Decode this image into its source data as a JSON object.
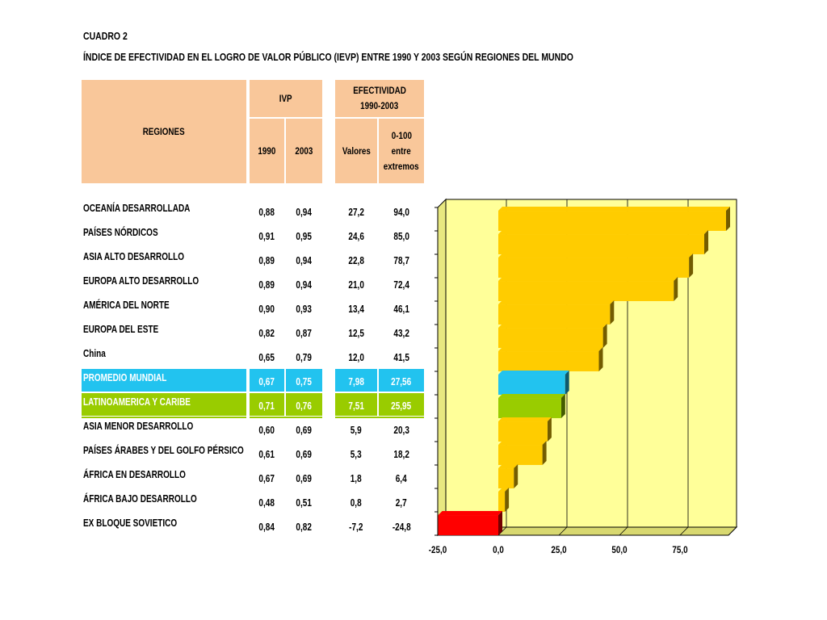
{
  "cuadro": "CUADRO 2",
  "subtitle": "ÍNDICE DE EFECTIVIDAD EN EL LOGRO DE VALOR PÚBLICO (IEVP) ENTRE 1990 Y 2003 SEGÚN REGIONES DEL MUNDO",
  "table": {
    "headers": {
      "regiones": "REGIONES",
      "ivp": "IVP",
      "y1990": "1990",
      "y2003": "2003",
      "efectividad_l1": "EFECTIVIDAD",
      "efectividad_l2": "1990-2003",
      "valores": "Valores",
      "scale_l1": "0-100",
      "scale_l2": "entre",
      "scale_l3": "extremos"
    },
    "rows": [
      {
        "name": "OCEANÍA DESARROLLADA",
        "v1990": "0,88",
        "v2003": "0,94",
        "valor": "27,2",
        "scale": "94,0"
      },
      {
        "name": "PAÍSES NÓRDICOS",
        "v1990": "0,91",
        "v2003": "0,95",
        "valor": "24,6",
        "scale": "85,0"
      },
      {
        "name": "ASIA ALTO DESARROLLO",
        "v1990": "0,89",
        "v2003": "0,94",
        "valor": "22,8",
        "scale": "78,7"
      },
      {
        "name": "EUROPA ALTO DESARROLLO",
        "v1990": "0,89",
        "v2003": "0,94",
        "valor": "21,0",
        "scale": "72,4"
      },
      {
        "name": "AMÉRICA DEL NORTE",
        "v1990": "0,90",
        "v2003": "0,93",
        "valor": "13,4",
        "scale": "46,1"
      },
      {
        "name": "EUROPA DEL ESTE",
        "v1990": "0,82",
        "v2003": "0,87",
        "valor": "12,5",
        "scale": "43,2"
      },
      {
        "name": "China",
        "v1990": "0,65",
        "v2003": "0,79",
        "valor": "12,0",
        "scale": "41,5"
      },
      {
        "name": "PROMEDIO MUNDIAL",
        "v1990": "0,67",
        "v2003": "0,75",
        "valor": "7,98",
        "scale": "27,56",
        "highlight": "#22c3ef"
      },
      {
        "name": "LATINOAMERICA Y CARIBE",
        "v1990": "0,71",
        "v2003": "0,76",
        "valor": "7,51",
        "scale": "25,95",
        "highlight": "#99cc00"
      },
      {
        "name": "ASIA MENOR DESARROLLO",
        "v1990": "0,60",
        "v2003": "0,69",
        "valor": "5,9",
        "scale": "20,3"
      },
      {
        "name": "PAÍSES ÁRABES Y DEL GOLFO PÉRSICO",
        "v1990": "0,61",
        "v2003": "0,69",
        "valor": "5,3",
        "scale": "18,2"
      },
      {
        "name": "ÁFRICA EN DESARROLLO",
        "v1990": "0,67",
        "v2003": "0,69",
        "valor": "1,8",
        "scale": "6,4"
      },
      {
        "name": "ÁFRICA BAJO DESARROLLO",
        "v1990": "0,48",
        "v2003": "0,51",
        "valor": "0,8",
        "scale": "2,7"
      },
      {
        "name": "EX BLOQUE SOVIETICO",
        "v1990": "0,84",
        "v2003": "0,82",
        "valor": "-7,2",
        "scale": "-24,8"
      }
    ]
  },
  "colors": {
    "header_bg": "#f9c79a",
    "bar_default": "#ffcc00",
    "bar_promedio": "#22c3ef",
    "bar_latam": "#99cc00",
    "bar_negative": "#ff0000",
    "plot_bg": "#ffff99"
  },
  "chart_data": {
    "type": "bar",
    "orientation": "horizontal",
    "categories": [
      "OCEANÍA DESARROLLADA",
      "PAÍSES NÓRDICOS",
      "ASIA ALTO DESARROLLO",
      "EUROPA ALTO DESARROLLO",
      "AMÉRICA DEL NORTE",
      "EUROPA DEL ESTE",
      "China",
      "PROMEDIO MUNDIAL",
      "LATINOAMERICA Y CARIBE",
      "ASIA MENOR DESARROLLO",
      "PAÍSES ÁRABES Y DEL GOLFO PÉRSICO",
      "ÁFRICA EN DESARROLLO",
      "ÁFRICA BAJO DESARROLLO",
      "EX BLOQUE SOVIETICO"
    ],
    "values": [
      94.0,
      85.0,
      78.7,
      72.4,
      46.1,
      43.2,
      41.5,
      27.56,
      25.95,
      20.3,
      18.2,
      6.4,
      2.7,
      -24.8
    ],
    "bar_colors": [
      "#ffcc00",
      "#ffcc00",
      "#ffcc00",
      "#ffcc00",
      "#ffcc00",
      "#ffcc00",
      "#ffcc00",
      "#22c3ef",
      "#99cc00",
      "#ffcc00",
      "#ffcc00",
      "#ffcc00",
      "#ffcc00",
      "#ff0000"
    ],
    "xlim": [
      -25,
      95
    ],
    "xticks": [
      -25,
      0,
      25,
      50,
      75
    ],
    "xtick_labels": [
      "-25,0",
      "0,0",
      "25,0",
      "50,0",
      "75,0"
    ],
    "grid": true,
    "style": "3d"
  }
}
